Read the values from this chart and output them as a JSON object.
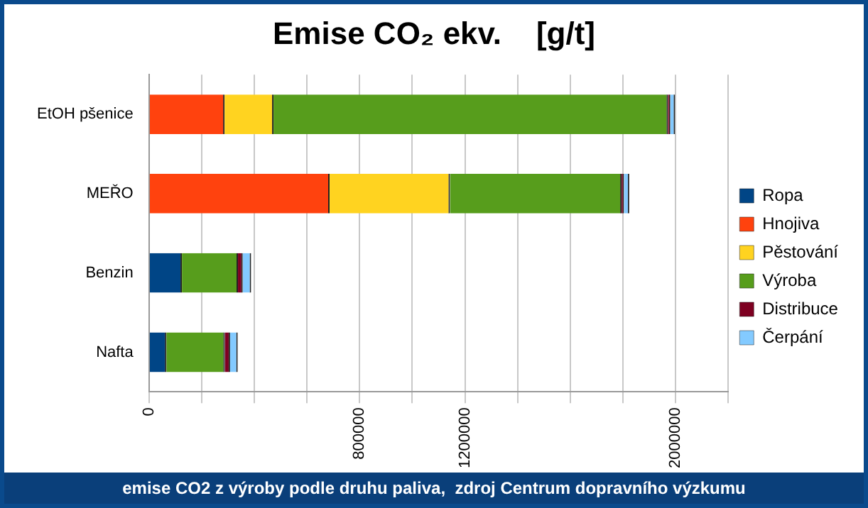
{
  "chart_data": {
    "type": "bar",
    "orientation": "horizontal",
    "stacked": true,
    "title": "Emise CO₂ ekv.    [g/t]",
    "categories": [
      "EtOH pšenice",
      "MEŘO",
      "Benzin",
      "Nafta"
    ],
    "series": [
      {
        "name": "Ropa",
        "color": "#004586",
        "values": [
          0,
          0,
          125000,
          66000
        ]
      },
      {
        "name": "Hnojiva",
        "color": "#ff420e",
        "values": [
          287000,
          686000,
          0,
          0
        ]
      },
      {
        "name": "Pěstování",
        "color": "#ffd320",
        "values": [
          186000,
          457000,
          0,
          0
        ]
      },
      {
        "name": "Výroba",
        "color": "#579d1c",
        "values": [
          1498000,
          652000,
          213000,
          222000
        ]
      },
      {
        "name": "Distribuce",
        "color": "#7e0021",
        "values": [
          9000,
          9000,
          18000,
          20000
        ]
      },
      {
        "name": "Čerpání",
        "color": "#83caff",
        "values": [
          18000,
          20000,
          32000,
          29000
        ]
      }
    ],
    "xlim": [
      0,
      2200000
    ],
    "xticks": [
      0,
      {
        "value": 200000,
        "label": null
      },
      {
        "value": 400000,
        "label": null
      },
      {
        "value": 600000,
        "label": null
      },
      800000,
      {
        "value": 1000000,
        "label": null
      },
      1200000,
      {
        "value": 1400000,
        "label": null
      },
      {
        "value": 1600000,
        "label": null
      },
      {
        "value": 1800000,
        "label": null
      },
      2000000,
      {
        "value": 2200000,
        "label": null
      }
    ],
    "grid": "x",
    "legend": "right",
    "annotations": [
      "emise CO2 z výroby podle druhu paliva,  zdroj Centrum dopravního výzkumu"
    ]
  }
}
